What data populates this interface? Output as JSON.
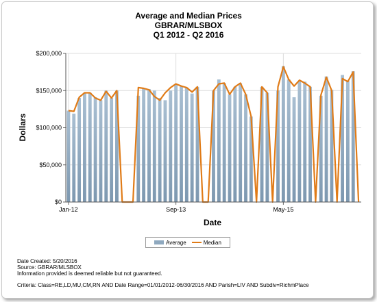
{
  "chart_data": {
    "type": "bar",
    "title": "Average and Median Prices",
    "subtitle_1": "GBRAR/MLSBOX",
    "subtitle_2": "Q1 2012 - Q2 2016",
    "xlabel": "Date",
    "ylabel": "Dollars",
    "ylim": [
      0,
      200000
    ],
    "yticks": [
      0,
      50000,
      100000,
      150000,
      200000
    ],
    "ytick_labels": [
      "$0",
      "$50,000",
      "$100,000",
      "$150,000",
      "$200,000"
    ],
    "xtick_labels": [
      {
        "label": "Jan-12",
        "index": 0
      },
      {
        "label": "Sep-13",
        "index": 20
      },
      {
        "label": "May-15",
        "index": 40
      }
    ],
    "grid": true,
    "legend_position": "bottom-center",
    "series": [
      {
        "name": "Average",
        "kind": "bar",
        "color": "#8fa9bf",
        "values": [
          123000,
          119000,
          140000,
          147000,
          147000,
          141000,
          137000,
          150000,
          140000,
          150000,
          0,
          0,
          0,
          143000,
          153000,
          152000,
          150000,
          140000,
          137000,
          150000,
          158000,
          156000,
          154000,
          146000,
          155000,
          0,
          0,
          150000,
          165000,
          160000,
          145000,
          155000,
          160000,
          145000,
          115000,
          0,
          155000,
          147000,
          0,
          150000,
          183000,
          165000,
          141000,
          163000,
          162000,
          155000,
          0,
          143000,
          169000,
          151000,
          0,
          171000,
          163000,
          176000,
          0
        ]
      },
      {
        "name": "Median",
        "kind": "line",
        "color": "#e07b17",
        "values": [
          123000,
          122000,
          141000,
          147000,
          147000,
          140000,
          137000,
          149000,
          140000,
          150000,
          0,
          0,
          0,
          154000,
          153000,
          151000,
          142000,
          137000,
          147000,
          154000,
          159000,
          156000,
          154000,
          148000,
          155000,
          0,
          0,
          150000,
          159000,
          160000,
          145000,
          155000,
          160000,
          145000,
          115000,
          0,
          155000,
          147000,
          0,
          155000,
          182000,
          165000,
          156000,
          164000,
          160000,
          155000,
          0,
          144000,
          168000,
          150000,
          0,
          166000,
          162000,
          175000,
          0
        ]
      }
    ]
  },
  "legend": {
    "average_label": "Average",
    "median_label": "Median"
  },
  "footer": {
    "line1": "Date Created: 5/20/2016",
    "line2": "Source: GBRAR/MLSBOX",
    "line3": "Information provided is deemed reliable but not guaranteed.",
    "line4": "Criteria: Class=RE,LD,MU,CM,RN AND Date Range=01/01/2012-06/30/2016 AND Parish=LIV AND Subdiv=RichmPlace"
  }
}
